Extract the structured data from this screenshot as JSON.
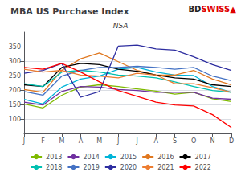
{
  "chart_data": {
    "type": "line",
    "title": "MBA US Purchase Index",
    "subtitle": "NSA",
    "annotations": [
      {
        "text": "BD",
        "color": "#222222"
      },
      {
        "text": "SWISS",
        "color": "#e00000"
      },
      {
        "text": "▲",
        "color": "#e00000"
      }
    ],
    "categories": [
      "J",
      "F",
      "M",
      "A",
      "M",
      "J",
      "J",
      "A",
      "S",
      "O",
      "N",
      "D"
    ],
    "series": [
      {
        "name": "2013",
        "color": "#7fba00",
        "values": [
          152,
          138,
          182,
          210,
          218,
          212,
          204,
          196,
          186,
          192,
          170,
          160
        ]
      },
      {
        "name": "2014",
        "color": "#7030a0",
        "values": [
          158,
          148,
          195,
          212,
          210,
          202,
          198,
          192,
          192,
          192,
          172,
          168
        ]
      },
      {
        "name": "2015",
        "color": "#00b4d8",
        "values": [
          168,
          152,
          210,
          238,
          248,
          272,
          278,
          262,
          252,
          250,
          212,
          192
        ]
      },
      {
        "name": "2016",
        "color": "#e07820",
        "values": [
          202,
          192,
          268,
          308,
          328,
          298,
          268,
          252,
          252,
          268,
          238,
          218
        ]
      },
      {
        "name": "2017",
        "color": "#000000",
        "values": [
          218,
          212,
          278,
          292,
          288,
          272,
          265,
          252,
          242,
          238,
          218,
          212
        ]
      },
      {
        "name": "2018",
        "color": "#00c0b0",
        "values": [
          222,
          212,
          262,
          268,
          262,
          252,
          248,
          242,
          228,
          212,
          198,
          192
        ]
      },
      {
        "name": "2019",
        "color": "#4472c4",
        "values": [
          195,
          182,
          248,
          268,
          278,
          278,
          282,
          278,
          272,
          278,
          248,
          232
        ]
      },
      {
        "name": "2020",
        "color": "#2e2ea0",
        "values": [
          258,
          268,
          292,
          175,
          195,
          352,
          355,
          342,
          338,
          315,
          288,
          268
        ]
      },
      {
        "name": "2021",
        "color": "#ed7d31",
        "values": [
          272,
          262,
          268,
          252,
          248,
          242,
          258,
          252,
          222,
          222,
          208,
          192
        ]
      },
      {
        "name": "2022",
        "color": "#ff0000",
        "values": [
          278,
          272,
          292,
          262,
          228,
          198,
          178,
          158,
          148,
          145,
          115,
          70
        ]
      }
    ],
    "ylim": [
      50,
      400
    ],
    "yticks": [
      100,
      150,
      200,
      250,
      300,
      350
    ],
    "grid": true,
    "legend": "bottom"
  }
}
